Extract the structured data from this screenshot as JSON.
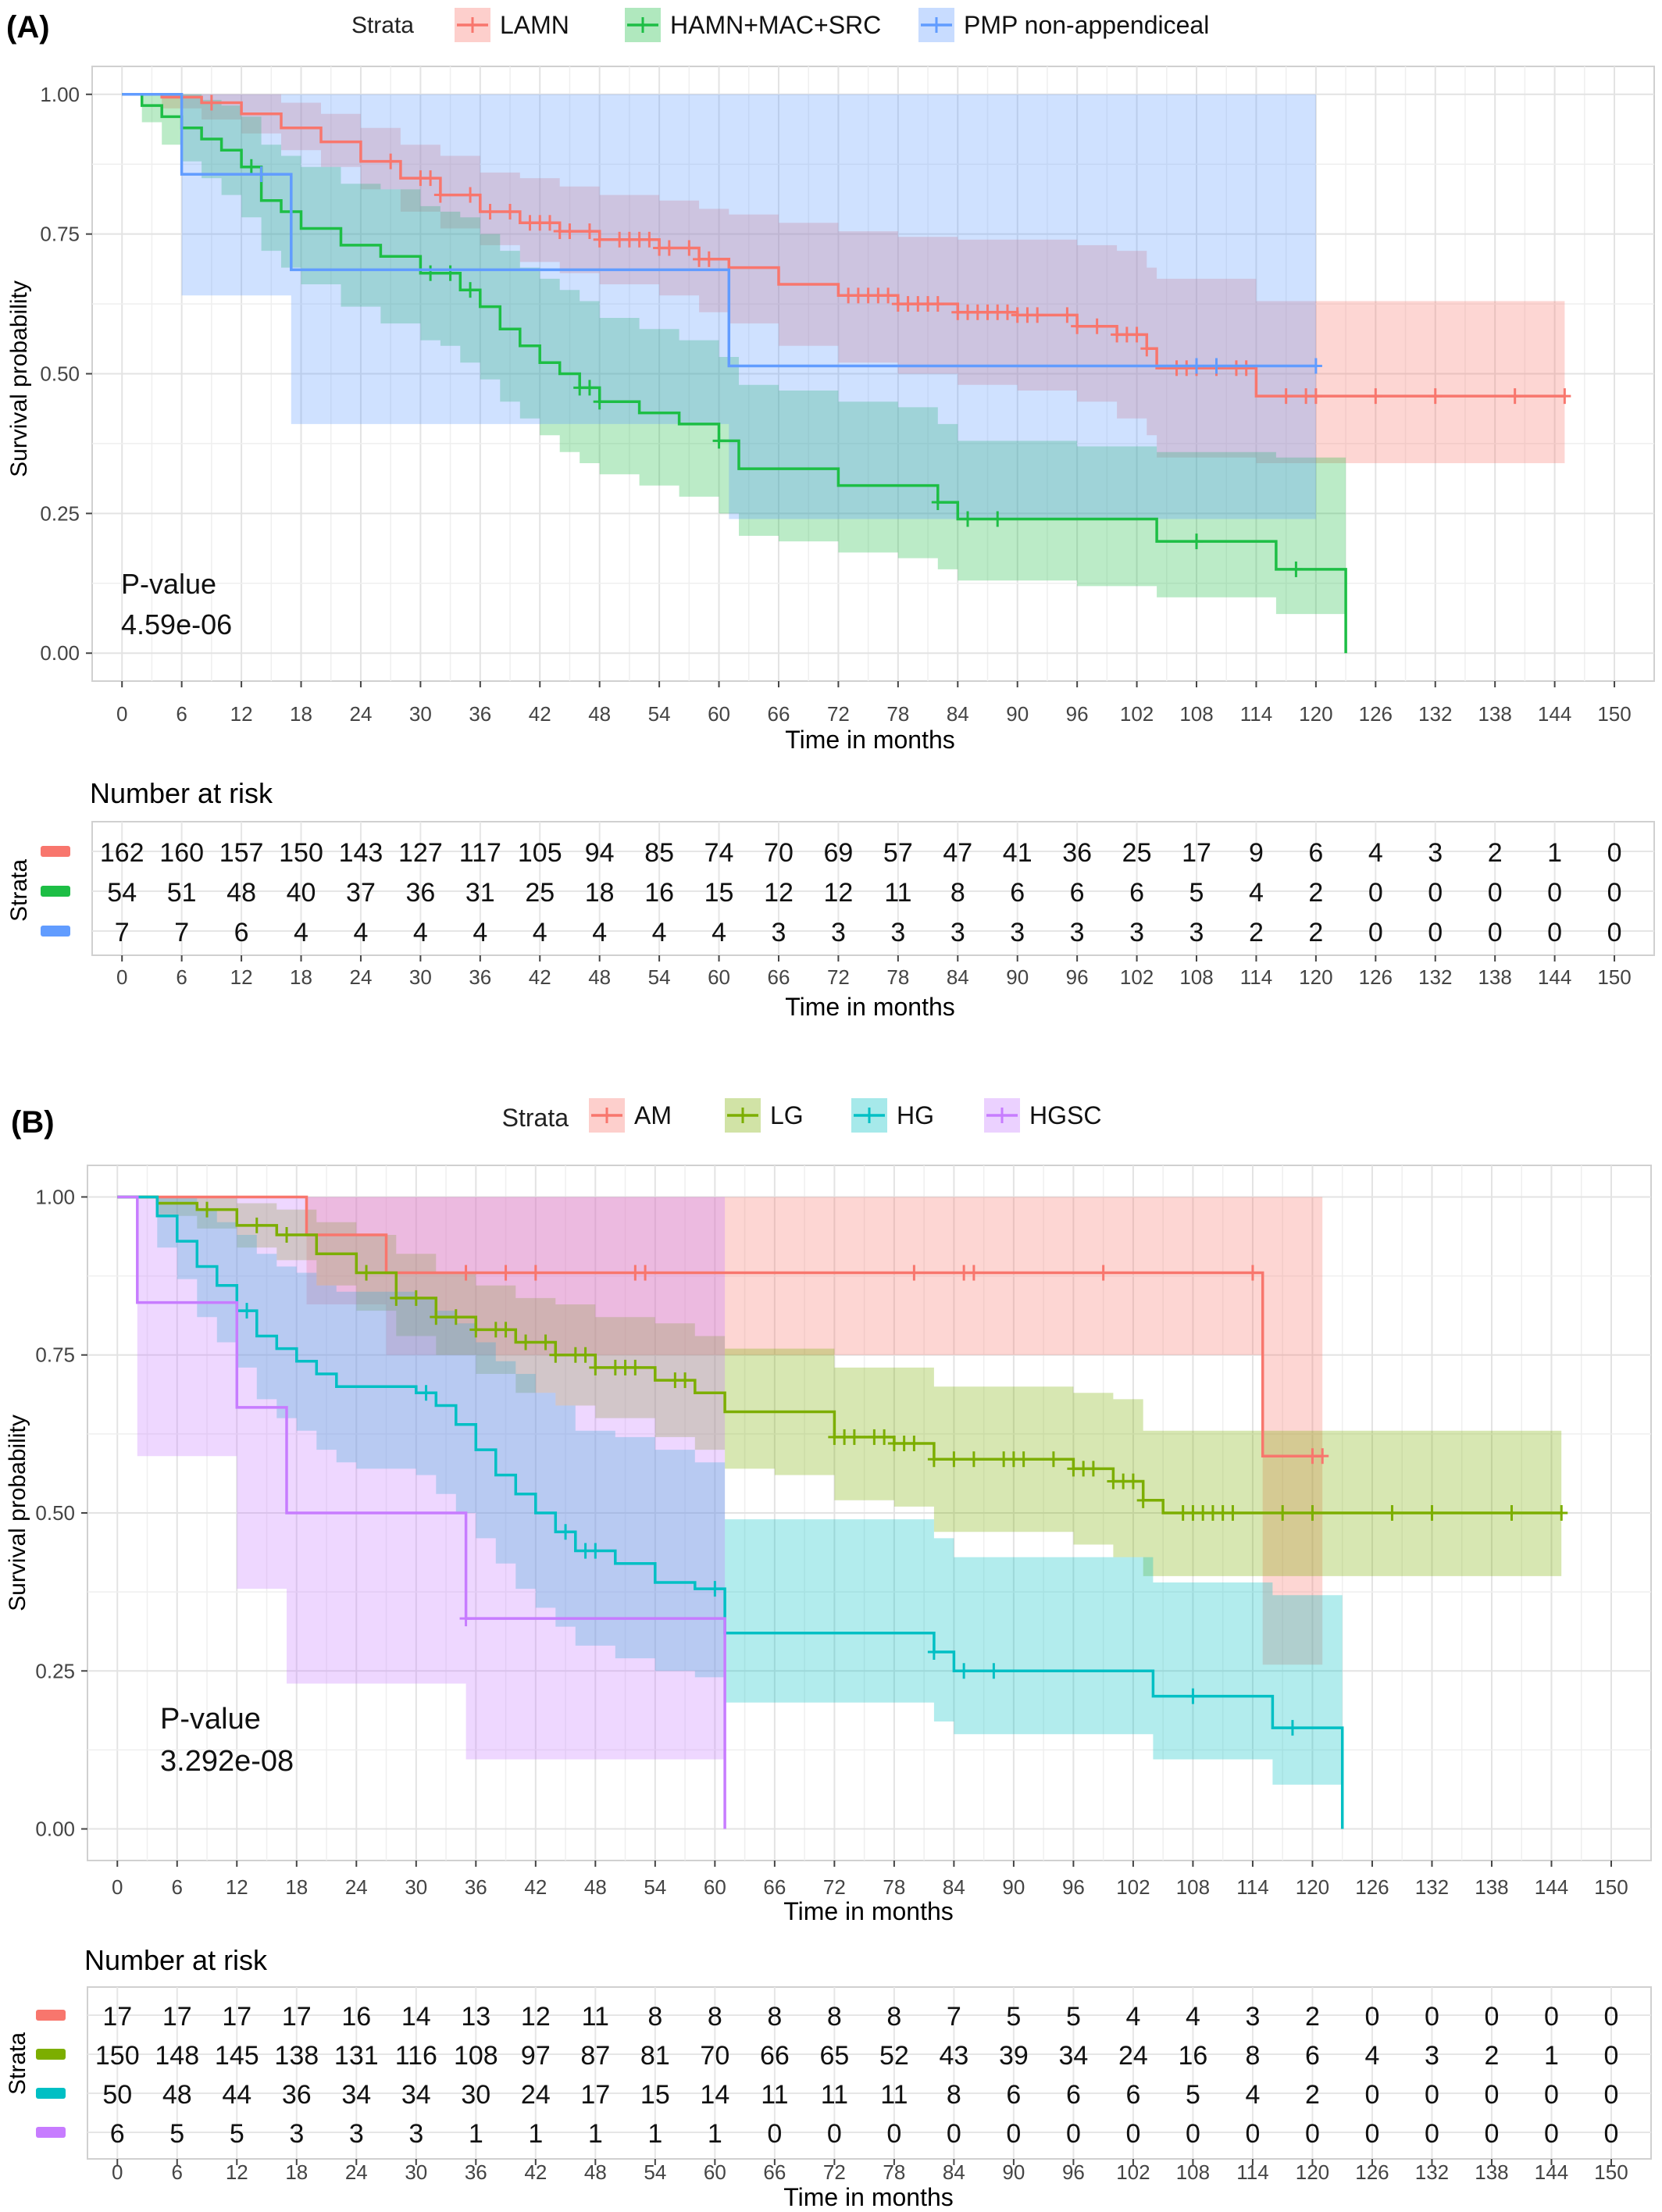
{
  "panels": [
    {
      "panel_label": "(A)",
      "legend_title": "Strata",
      "strata": [
        {
          "name": "LAMN",
          "color": "#F8766D"
        },
        {
          "name": "HAMN+MAC+SRC",
          "color": "#1DBE45"
        },
        {
          "name": "PMP non-appendiceal",
          "color": "#619CFF"
        }
      ],
      "pvalue_label": "P-value",
      "pvalue": "4.59e-06",
      "ylabel": "Survival probability",
      "xlabel": "Time in months",
      "risk_title": "Number at risk",
      "risk_ylabel": "Strata",
      "risk_table": [
        [
          162,
          160,
          157,
          150,
          143,
          127,
          117,
          105,
          94,
          85,
          74,
          70,
          69,
          57,
          47,
          41,
          36,
          25,
          17,
          9,
          6,
          4,
          3,
          2,
          1,
          0
        ],
        [
          54,
          51,
          48,
          40,
          37,
          36,
          31,
          25,
          18,
          16,
          15,
          12,
          12,
          11,
          8,
          6,
          6,
          6,
          5,
          4,
          2,
          0,
          0,
          0,
          0,
          0
        ],
        [
          7,
          7,
          6,
          4,
          4,
          4,
          4,
          4,
          4,
          4,
          4,
          3,
          3,
          3,
          3,
          3,
          3,
          3,
          3,
          2,
          2,
          0,
          0,
          0,
          0,
          0
        ]
      ]
    },
    {
      "panel_label": "(B)",
      "legend_title": "Strata",
      "strata": [
        {
          "name": "AM",
          "color": "#F8766D"
        },
        {
          "name": "LG",
          "color": "#7CAE00"
        },
        {
          "name": "HG",
          "color": "#00BFC4"
        },
        {
          "name": "HGSC",
          "color": "#C77CFF"
        }
      ],
      "pvalue_label": "P-value",
      "pvalue": "3.292e-08",
      "ylabel": "Survival probability",
      "xlabel": "Time in months",
      "risk_title": "Number at risk",
      "risk_ylabel": "Strata",
      "risk_table": [
        [
          17,
          17,
          17,
          17,
          16,
          14,
          13,
          12,
          11,
          8,
          8,
          8,
          8,
          8,
          7,
          5,
          5,
          4,
          4,
          3,
          2,
          0,
          0,
          0,
          0,
          0
        ],
        [
          150,
          148,
          145,
          138,
          131,
          116,
          108,
          97,
          87,
          81,
          70,
          66,
          65,
          52,
          43,
          39,
          34,
          24,
          16,
          8,
          6,
          4,
          3,
          2,
          1,
          0
        ],
        [
          50,
          48,
          44,
          36,
          34,
          34,
          30,
          24,
          17,
          15,
          14,
          11,
          11,
          11,
          8,
          6,
          6,
          6,
          5,
          4,
          2,
          0,
          0,
          0,
          0,
          0
        ],
        [
          6,
          5,
          5,
          3,
          3,
          3,
          1,
          1,
          1,
          1,
          1,
          0,
          0,
          0,
          0,
          0,
          0,
          0,
          0,
          0,
          0,
          0,
          0,
          0,
          0,
          0
        ]
      ]
    }
  ],
  "chart_data": [
    {
      "type": "line",
      "title": "",
      "xlabel": "Time in months",
      "ylabel": "Survival probability",
      "xlim": [
        -3,
        154
      ],
      "ylim": [
        -0.05,
        1.05
      ],
      "x_ticks": [
        0,
        6,
        12,
        18,
        24,
        30,
        36,
        42,
        48,
        54,
        60,
        66,
        72,
        78,
        84,
        90,
        96,
        102,
        108,
        114,
        120,
        126,
        132,
        138,
        144,
        150
      ],
      "y_ticks": [
        0.0,
        0.25,
        0.5,
        0.75,
        1.0
      ],
      "y_tick_labels": [
        "0.00",
        "0.25",
        "0.50",
        "0.75",
        "1.00"
      ],
      "grid": true,
      "legend_position": "top",
      "series": [
        {
          "name": "LAMN",
          "color": "#F8766D",
          "x": [
            0,
            4,
            8,
            12,
            16,
            20,
            24,
            28,
            32,
            36,
            40,
            44,
            48,
            54,
            58,
            61,
            66,
            72,
            78,
            84,
            90,
            96,
            100,
            103,
            104,
            114,
            145
          ],
          "y": [
            1.0,
            0.995,
            0.985,
            0.965,
            0.94,
            0.915,
            0.88,
            0.85,
            0.82,
            0.79,
            0.77,
            0.755,
            0.74,
            0.725,
            0.705,
            0.69,
            0.66,
            0.64,
            0.625,
            0.61,
            0.605,
            0.585,
            0.57,
            0.545,
            0.51,
            0.46,
            0.46
          ],
          "lower": [
            1.0,
            0.975,
            0.955,
            0.93,
            0.9,
            0.87,
            0.83,
            0.79,
            0.76,
            0.73,
            0.7,
            0.68,
            0.66,
            0.64,
            0.61,
            0.59,
            0.55,
            0.52,
            0.5,
            0.48,
            0.47,
            0.45,
            0.42,
            0.39,
            0.35,
            0.34,
            0.34
          ],
          "upper": [
            1.0,
            1.0,
            1.0,
            1.0,
            0.985,
            0.965,
            0.94,
            0.91,
            0.89,
            0.86,
            0.85,
            0.835,
            0.82,
            0.81,
            0.795,
            0.785,
            0.77,
            0.755,
            0.745,
            0.74,
            0.74,
            0.73,
            0.72,
            0.69,
            0.67,
            0.63,
            0.63
          ],
          "censor_x": [
            9,
            27,
            30,
            31,
            32,
            35,
            37,
            39,
            41,
            42,
            43,
            44,
            45,
            47,
            48,
            50,
            51,
            52,
            53,
            54,
            55,
            57,
            58,
            59,
            73,
            74,
            75,
            76,
            77,
            78,
            79,
            80,
            81,
            82,
            84,
            85,
            86,
            87,
            88,
            89,
            90,
            91,
            92,
            95,
            96,
            98,
            100,
            101,
            102,
            103,
            106,
            107,
            108,
            110,
            112,
            113,
            117,
            119,
            120,
            126,
            132,
            140,
            145
          ]
        },
        {
          "name": "HAMN+MAC+SRC",
          "color": "#1DBE45",
          "x": [
            0,
            2,
            4,
            6,
            8,
            10,
            12,
            14,
            16,
            18,
            22,
            26,
            30,
            32,
            34,
            36,
            38,
            40,
            42,
            44,
            46,
            48,
            52,
            56,
            60,
            62,
            66,
            72,
            78,
            82,
            84,
            96,
            104,
            108,
            116,
            118,
            123
          ],
          "y": [
            1.0,
            0.98,
            0.96,
            0.94,
            0.92,
            0.9,
            0.87,
            0.81,
            0.79,
            0.76,
            0.73,
            0.71,
            0.68,
            0.68,
            0.65,
            0.62,
            0.58,
            0.55,
            0.52,
            0.5,
            0.475,
            0.45,
            0.43,
            0.41,
            0.38,
            0.33,
            0.33,
            0.3,
            0.3,
            0.27,
            0.24,
            0.24,
            0.2,
            0.2,
            0.15,
            0.15,
            0.0
          ],
          "lower": [
            1.0,
            0.95,
            0.91,
            0.88,
            0.85,
            0.82,
            0.78,
            0.72,
            0.69,
            0.66,
            0.62,
            0.59,
            0.56,
            0.55,
            0.52,
            0.49,
            0.45,
            0.42,
            0.39,
            0.36,
            0.34,
            0.32,
            0.3,
            0.28,
            0.25,
            0.21,
            0.2,
            0.18,
            0.17,
            0.15,
            0.13,
            0.12,
            0.1,
            0.1,
            0.07,
            0.07,
            0.07
          ],
          "upper": [
            1.0,
            1.0,
            1.0,
            1.0,
            0.99,
            0.98,
            0.96,
            0.91,
            0.89,
            0.87,
            0.84,
            0.83,
            0.8,
            0.79,
            0.78,
            0.75,
            0.72,
            0.69,
            0.67,
            0.65,
            0.63,
            0.6,
            0.58,
            0.56,
            0.53,
            0.48,
            0.47,
            0.45,
            0.44,
            0.41,
            0.38,
            0.37,
            0.36,
            0.36,
            0.35,
            0.35,
            0.35
          ],
          "censor_x": [
            13,
            31,
            33,
            35,
            46,
            47,
            48,
            60,
            82,
            85,
            88,
            108,
            118
          ]
        },
        {
          "name": "PMP non-appendiceal",
          "color": "#619CFF",
          "x": [
            0,
            6,
            17,
            61,
            120
          ],
          "y": [
            1.0,
            0.857,
            0.686,
            0.514,
            0.514
          ],
          "lower": [
            1.0,
            0.64,
            0.41,
            0.24,
            0.24
          ],
          "upper": [
            1.0,
            1.0,
            1.0,
            1.0,
            1.0
          ],
          "censor_x": [
            14,
            108,
            110,
            120
          ]
        }
      ],
      "annotations": [
        "P-value",
        "4.59e-06"
      ]
    },
    {
      "type": "line",
      "title": "",
      "xlabel": "Time in months",
      "ylabel": "Survival probability",
      "xlim": [
        -3,
        154
      ],
      "ylim": [
        -0.05,
        1.05
      ],
      "x_ticks": [
        0,
        6,
        12,
        18,
        24,
        30,
        36,
        42,
        48,
        54,
        60,
        66,
        72,
        78,
        84,
        90,
        96,
        102,
        108,
        114,
        120,
        126,
        132,
        138,
        144,
        150
      ],
      "y_ticks": [
        0.0,
        0.25,
        0.5,
        0.75,
        1.0
      ],
      "y_tick_labels": [
        "0.00",
        "0.25",
        "0.50",
        "0.75",
        "1.00"
      ],
      "grid": true,
      "legend_position": "top",
      "series": [
        {
          "name": "AM",
          "color": "#F8766D",
          "x": [
            0,
            19,
            27,
            115,
            121
          ],
          "y": [
            1.0,
            0.94,
            0.88,
            0.59,
            0.59
          ],
          "lower": [
            1.0,
            0.83,
            0.75,
            0.26,
            0.26
          ],
          "upper": [
            1.0,
            1.0,
            1.0,
            1.0,
            1.0
          ],
          "censor_x": [
            35,
            39,
            42,
            52,
            53,
            80,
            85,
            86,
            99,
            114,
            120,
            121
          ]
        },
        {
          "name": "LG",
          "color": "#7CAE00",
          "x": [
            0,
            4,
            8,
            12,
            16,
            20,
            24,
            28,
            32,
            36,
            40,
            44,
            48,
            54,
            58,
            61,
            66,
            72,
            78,
            82,
            84,
            96,
            100,
            103,
            105,
            110,
            145
          ],
          "y": [
            1.0,
            0.99,
            0.98,
            0.955,
            0.94,
            0.91,
            0.88,
            0.84,
            0.81,
            0.79,
            0.77,
            0.75,
            0.73,
            0.71,
            0.69,
            0.66,
            0.66,
            0.62,
            0.61,
            0.585,
            0.585,
            0.57,
            0.55,
            0.52,
            0.5,
            0.5,
            0.5
          ],
          "lower": [
            1.0,
            0.97,
            0.95,
            0.92,
            0.9,
            0.86,
            0.82,
            0.78,
            0.75,
            0.72,
            0.69,
            0.67,
            0.65,
            0.62,
            0.6,
            0.57,
            0.56,
            0.52,
            0.51,
            0.47,
            0.47,
            0.45,
            0.43,
            0.4,
            0.4,
            0.4,
            0.4
          ],
          "upper": [
            1.0,
            1.0,
            1.0,
            0.99,
            0.98,
            0.96,
            0.94,
            0.91,
            0.88,
            0.86,
            0.84,
            0.83,
            0.81,
            0.8,
            0.78,
            0.76,
            0.76,
            0.73,
            0.73,
            0.7,
            0.7,
            0.69,
            0.68,
            0.63,
            0.63,
            0.63,
            0.63
          ],
          "censor_x": [
            9,
            14,
            17,
            25,
            28,
            30,
            32,
            34,
            36,
            38,
            39,
            41,
            43,
            44,
            46,
            47,
            48,
            50,
            51,
            52,
            56,
            57,
            72,
            73,
            74,
            76,
            77,
            78,
            79,
            80,
            82,
            84,
            86,
            89,
            90,
            91,
            94,
            96,
            97,
            98,
            100,
            101,
            102,
            103,
            107,
            108,
            109,
            110,
            111,
            112,
            117,
            120,
            128,
            132,
            140,
            145
          ]
        },
        {
          "name": "HG",
          "color": "#00BFC4",
          "x": [
            0,
            4,
            6,
            8,
            10,
            12,
            14,
            16,
            18,
            20,
            22,
            24,
            30,
            32,
            34,
            36,
            38,
            40,
            42,
            44,
            46,
            50,
            54,
            58,
            61,
            82,
            84,
            104,
            116,
            123
          ],
          "y": [
            1.0,
            0.97,
            0.93,
            0.89,
            0.86,
            0.82,
            0.78,
            0.76,
            0.74,
            0.72,
            0.7,
            0.7,
            0.69,
            0.67,
            0.64,
            0.6,
            0.56,
            0.53,
            0.5,
            0.47,
            0.44,
            0.42,
            0.39,
            0.38,
            0.31,
            0.28,
            0.25,
            0.21,
            0.16,
            0.0
          ],
          "lower": [
            1.0,
            0.92,
            0.87,
            0.81,
            0.77,
            0.73,
            0.68,
            0.65,
            0.63,
            0.6,
            0.58,
            0.57,
            0.56,
            0.53,
            0.5,
            0.46,
            0.42,
            0.38,
            0.35,
            0.32,
            0.29,
            0.27,
            0.25,
            0.24,
            0.2,
            0.17,
            0.15,
            0.11,
            0.07,
            0.07
          ],
          "upper": [
            1.0,
            1.0,
            1.0,
            0.98,
            0.96,
            0.94,
            0.91,
            0.89,
            0.88,
            0.86,
            0.85,
            0.85,
            0.84,
            0.82,
            0.8,
            0.77,
            0.74,
            0.72,
            0.69,
            0.67,
            0.63,
            0.62,
            0.6,
            0.58,
            0.49,
            0.46,
            0.43,
            0.39,
            0.37,
            0.37
          ],
          "censor_x": [
            13,
            31,
            45,
            47,
            48,
            60,
            82,
            85,
            88,
            108,
            118
          ]
        },
        {
          "name": "HGSC",
          "color": "#C77CFF",
          "x": [
            0,
            2,
            12,
            17,
            35,
            61
          ],
          "y": [
            1.0,
            0.833,
            0.667,
            0.5,
            0.333,
            0.0
          ],
          "lower": [
            1.0,
            0.59,
            0.38,
            0.23,
            0.11,
            0.11
          ],
          "upper": [
            1.0,
            1.0,
            1.0,
            1.0,
            1.0,
            1.0
          ],
          "censor_x": [
            35
          ]
        }
      ],
      "annotations": [
        "P-value",
        "3.292e-08"
      ]
    }
  ]
}
